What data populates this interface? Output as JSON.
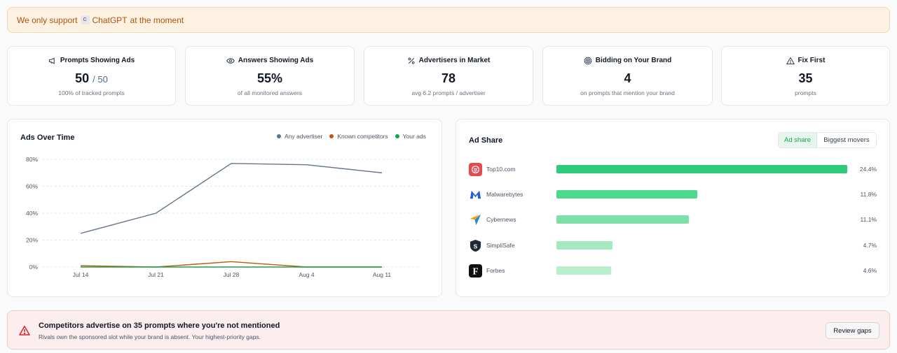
{
  "banner": {
    "prefix": "We only support",
    "chip": "C",
    "model": "ChatGPT",
    "suffix": "at the moment"
  },
  "kpis": [
    {
      "title": "Prompts Showing Ads",
      "icon": "megaphone-icon",
      "value": "50",
      "denominator": "/ 50",
      "subtitle": "100% of tracked prompts"
    },
    {
      "title": "Answers Showing Ads",
      "icon": "eye-icon",
      "value": "55%",
      "subtitle": "of all monitored answers"
    },
    {
      "title": "Advertisers in Market",
      "icon": "percent-icon",
      "value": "78",
      "subtitle": "avg 6.2 prompts / advertiser"
    },
    {
      "title": "Bidding on Your Brand",
      "icon": "target-icon",
      "value": "4",
      "subtitle": "on prompts that mention your brand"
    },
    {
      "title": "Fix First",
      "icon": "warning-icon",
      "value": "35",
      "subtitle": "prompts"
    }
  ],
  "ads_over_time": {
    "title": "Ads Over Time",
    "legend": [
      {
        "label": "Any advertiser",
        "color": "#64748b"
      },
      {
        "label": "Known competitors",
        "color": "#c2570c"
      },
      {
        "label": "Your ads",
        "color": "#16a34a"
      }
    ]
  },
  "chart_data": {
    "type": "line",
    "title": "Ads Over Time",
    "x": [
      "Jul 14",
      "Jul 21",
      "Jul 28",
      "Aug 4",
      "Aug 11"
    ],
    "series": [
      {
        "name": "Any advertiser",
        "color": "#64748b",
        "values": [
          25,
          40,
          77,
          76,
          70
        ]
      },
      {
        "name": "Known competitors",
        "color": "#c2570c",
        "values": [
          1,
          0,
          4,
          0,
          0
        ]
      },
      {
        "name": "Your ads",
        "color": "#16a34a",
        "values": [
          0,
          0,
          0,
          0,
          0
        ]
      }
    ],
    "yticks": [
      "0%",
      "20%",
      "40%",
      "60%",
      "80%"
    ],
    "ylim": [
      0,
      80
    ],
    "grid": true,
    "legend_position": "top-right"
  },
  "ad_share": {
    "title": "Ad Share",
    "tabs": [
      "Ad share",
      "Biggest movers"
    ],
    "active_tab": "Ad share",
    "max_share": 24.4,
    "rows": [
      {
        "name": "Top10.com",
        "share": 24.4,
        "label": "24.4%",
        "bar_color": "#2ecc7a",
        "logo_color": "#e5484d",
        "logo_icon": "top10-logo-icon"
      },
      {
        "name": "Malwarebytes",
        "share": 11.8,
        "label": "11.8%",
        "bar_color": "#4cd98c",
        "logo_color": "#1d5fd6",
        "logo_icon": "malwarebytes-logo-icon"
      },
      {
        "name": "Cybernews",
        "share": 11.1,
        "label": "11.1%",
        "bar_color": "#7ee0a8",
        "logo_color": "#1e88e5",
        "logo_icon": "cybernews-logo-icon"
      },
      {
        "name": "SimpliSafe",
        "share": 4.7,
        "label": "4.7%",
        "bar_color": "#a3e9c1",
        "logo_color": "#1f2937",
        "logo_icon": "simplisafe-logo-icon"
      },
      {
        "name": "Forbes",
        "share": 4.6,
        "label": "4.6%",
        "bar_color": "#b9efcf",
        "logo_color": "#111111",
        "logo_icon": "forbes-logo-icon"
      }
    ]
  },
  "alert": {
    "title": "Competitors advertise on 35 prompts where you're not mentioned",
    "subtitle": "Rivals own the sponsored slot while your brand is absent. Your highest-priority gaps.",
    "button": "Review gaps"
  }
}
